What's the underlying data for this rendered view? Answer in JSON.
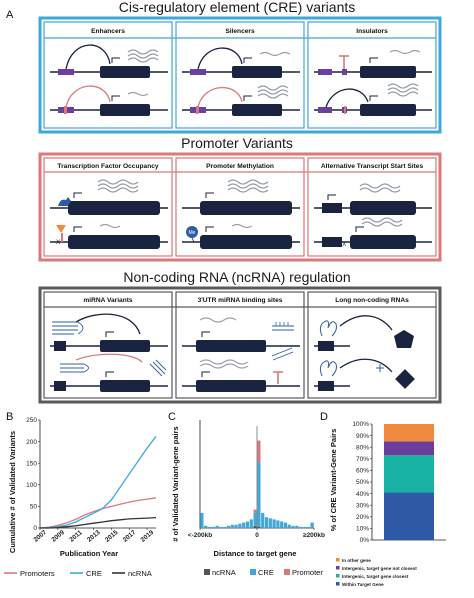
{
  "panels": {
    "a": "A",
    "b": "B",
    "c": "C",
    "d": "D"
  },
  "sections": [
    {
      "title": "Cis-regulatory element (CRE) variants",
      "color": "#3fa8d8",
      "columns": [
        "Enhancers",
        "Silencers",
        "Insulators"
      ]
    },
    {
      "title": "Promoter Variants",
      "color": "#d9797a",
      "columns": [
        "Transcription Factor Occupancy",
        "Promoter Methylation",
        "Alternative Transcript Start Sites"
      ]
    },
    {
      "title": "Non-coding RNA (ncRNA) regulation",
      "color": "#5a5a5a",
      "columns": [
        "miRNA Variants",
        "3'UTR miRNA binding sites",
        "Long non-coding RNAs"
      ]
    }
  ],
  "schematic": {
    "methyl_label": "Me",
    "variant_mark": "X"
  },
  "chart_data": [
    {
      "type": "line",
      "panel": "B",
      "xlabel": "Publication Year",
      "ylabel": "Cumulative # of Validated Variants",
      "x_ticks": [
        "2007",
        "2009",
        "2011",
        "2013",
        "2015",
        "2017",
        "2019"
      ],
      "y_ticks": [
        "0",
        "50",
        "100",
        "150",
        "200",
        "250"
      ],
      "xlim": [
        2007,
        2020
      ],
      "ylim": [
        0,
        250
      ],
      "x": [
        2007,
        2008,
        2009,
        2010,
        2011,
        2012,
        2013,
        2014,
        2015,
        2016,
        2017,
        2018,
        2019,
        2020
      ],
      "series": [
        {
          "name": "Promoters",
          "color": "#d9797a",
          "values": [
            0,
            2,
            6,
            12,
            20,
            30,
            38,
            45,
            50,
            55,
            60,
            64,
            67,
            70
          ]
        },
        {
          "name": "CRE",
          "color": "#3fa8d8",
          "values": [
            0,
            1,
            3,
            7,
            14,
            24,
            34,
            45,
            65,
            95,
            125,
            155,
            185,
            212
          ]
        },
        {
          "name": "ncRNA",
          "color": "#333333",
          "values": [
            0,
            0,
            1,
            3,
            5,
            8,
            11,
            14,
            17,
            19,
            21,
            22,
            23,
            24
          ]
        }
      ]
    },
    {
      "type": "bar",
      "panel": "C",
      "stacked": true,
      "xlabel": "Distance to target gene",
      "ylabel": "# of Validated Variant-gene pairs",
      "x_ticks": [
        "<-200kb",
        "0",
        "≥200kb"
      ],
      "categories": [
        "b1",
        "b2",
        "b3",
        "b4",
        "b5",
        "b6",
        "b7",
        "b8",
        "b9",
        "b10",
        "b11",
        "b12",
        "b13",
        "b14",
        "b15",
        "b16",
        "b17",
        "b18",
        "b19",
        "b20",
        "b21",
        "b22",
        "b23",
        "b24",
        "b25",
        "b26",
        "b27",
        "b28",
        "b29",
        "b30"
      ],
      "series": [
        {
          "name": "ncRNA",
          "color": "#555555",
          "values": [
            0,
            0,
            0,
            0,
            0,
            0,
            0,
            0,
            0,
            0,
            0,
            0,
            0,
            0,
            2,
            1,
            0,
            0,
            0,
            0,
            0,
            0,
            0,
            0,
            0,
            0,
            0,
            0,
            0,
            0
          ]
        },
        {
          "name": "CRE",
          "color": "#3fa8d8",
          "values": [
            14,
            2,
            1,
            1,
            2,
            1,
            1,
            2,
            3,
            3,
            4,
            5,
            6,
            8,
            12,
            60,
            14,
            10,
            9,
            8,
            7,
            6,
            5,
            3,
            2,
            2,
            1,
            1,
            1,
            5
          ]
        },
        {
          "name": "Promoter",
          "color": "#d9797a",
          "values": [
            0,
            0,
            0,
            0,
            0,
            0,
            0,
            0,
            0,
            0,
            0,
            0,
            0,
            0,
            3,
            20,
            0,
            0,
            0,
            0,
            0,
            0,
            0,
            0,
            0,
            0,
            0,
            0,
            0,
            0
          ]
        }
      ],
      "ylim": [
        0,
        100
      ]
    },
    {
      "type": "bar",
      "panel": "D",
      "stacked": true,
      "ylabel": "% of CRE Variant-Gene Pairs",
      "y_ticks": [
        "0%",
        "10%",
        "20%",
        "30%",
        "40%",
        "50%",
        "60%",
        "70%",
        "80%",
        "90%",
        "100%"
      ],
      "ylim": [
        0,
        100
      ],
      "segments": [
        {
          "name": "Within Target Gene",
          "color": "#2e5aa8",
          "value": 41
        },
        {
          "name": "Intergenic, target gene closest",
          "color": "#19b3a6",
          "value": 32
        },
        {
          "name": "Intergenic, target gene not closest",
          "color": "#6a3d9a",
          "value": 12
        },
        {
          "name": "In other gene",
          "color": "#f08a3c",
          "value": 15
        }
      ]
    }
  ]
}
